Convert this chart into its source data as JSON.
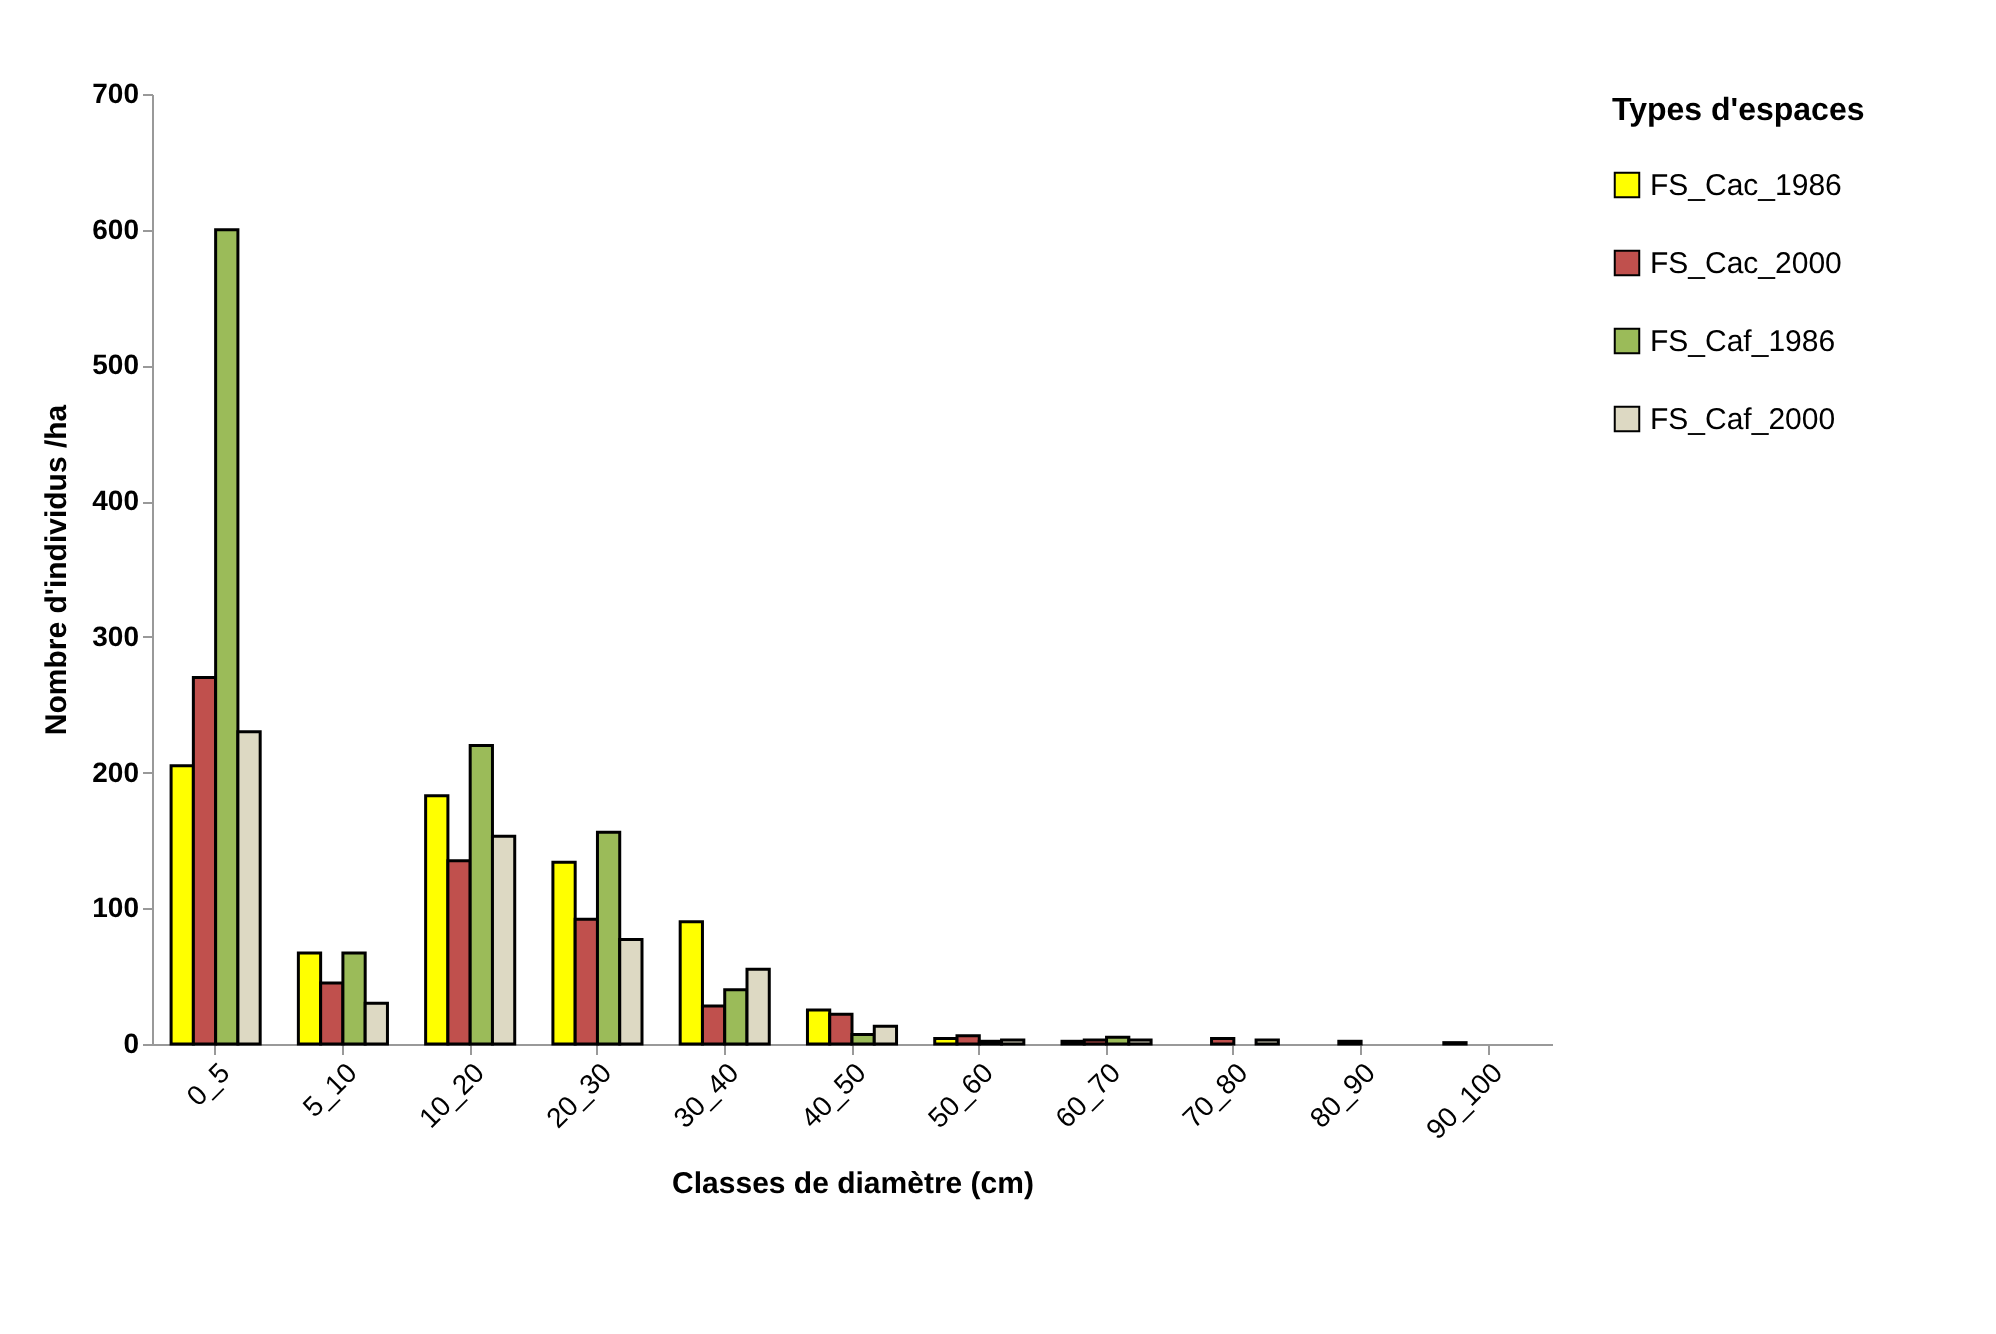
{
  "chart_data": {
    "type": "bar",
    "xlabel": "Classes de diamètre (cm)",
    "ylabel": "Nombre d'individus /ha",
    "legend_title": "Types d'espaces",
    "categories": [
      "0_5",
      "5_10",
      "10_20",
      "20_30",
      "30_40",
      "40_50",
      "50_60",
      "60_70",
      "70_80",
      "80_90",
      "90_100"
    ],
    "series": [
      {
        "name": "FS_Cac_1986",
        "color": "#ffff00",
        "values": [
          205,
          67,
          183,
          134,
          90,
          25,
          4,
          2,
          null,
          null,
          1
        ]
      },
      {
        "name": "FS_Cac_2000",
        "color": "#c0504d",
        "values": [
          270,
          45,
          135,
          92,
          28,
          22,
          6,
          3,
          4,
          2,
          null
        ]
      },
      {
        "name": "FS_Caf_1986",
        "color": "#9bbb59",
        "values": [
          600,
          67,
          220,
          156,
          40,
          7,
          2,
          5,
          null,
          null,
          null
        ]
      },
      {
        "name": "FS_Caf_2000",
        "color": "#ddd9c3",
        "values": [
          230,
          30,
          153,
          77,
          55,
          13,
          3,
          3,
          3,
          null,
          null
        ]
      }
    ],
    "ylim": [
      0,
      700
    ],
    "yticks": [
      0,
      100,
      200,
      300,
      400,
      500,
      600,
      700
    ],
    "grid": false,
    "legend": "right"
  }
}
